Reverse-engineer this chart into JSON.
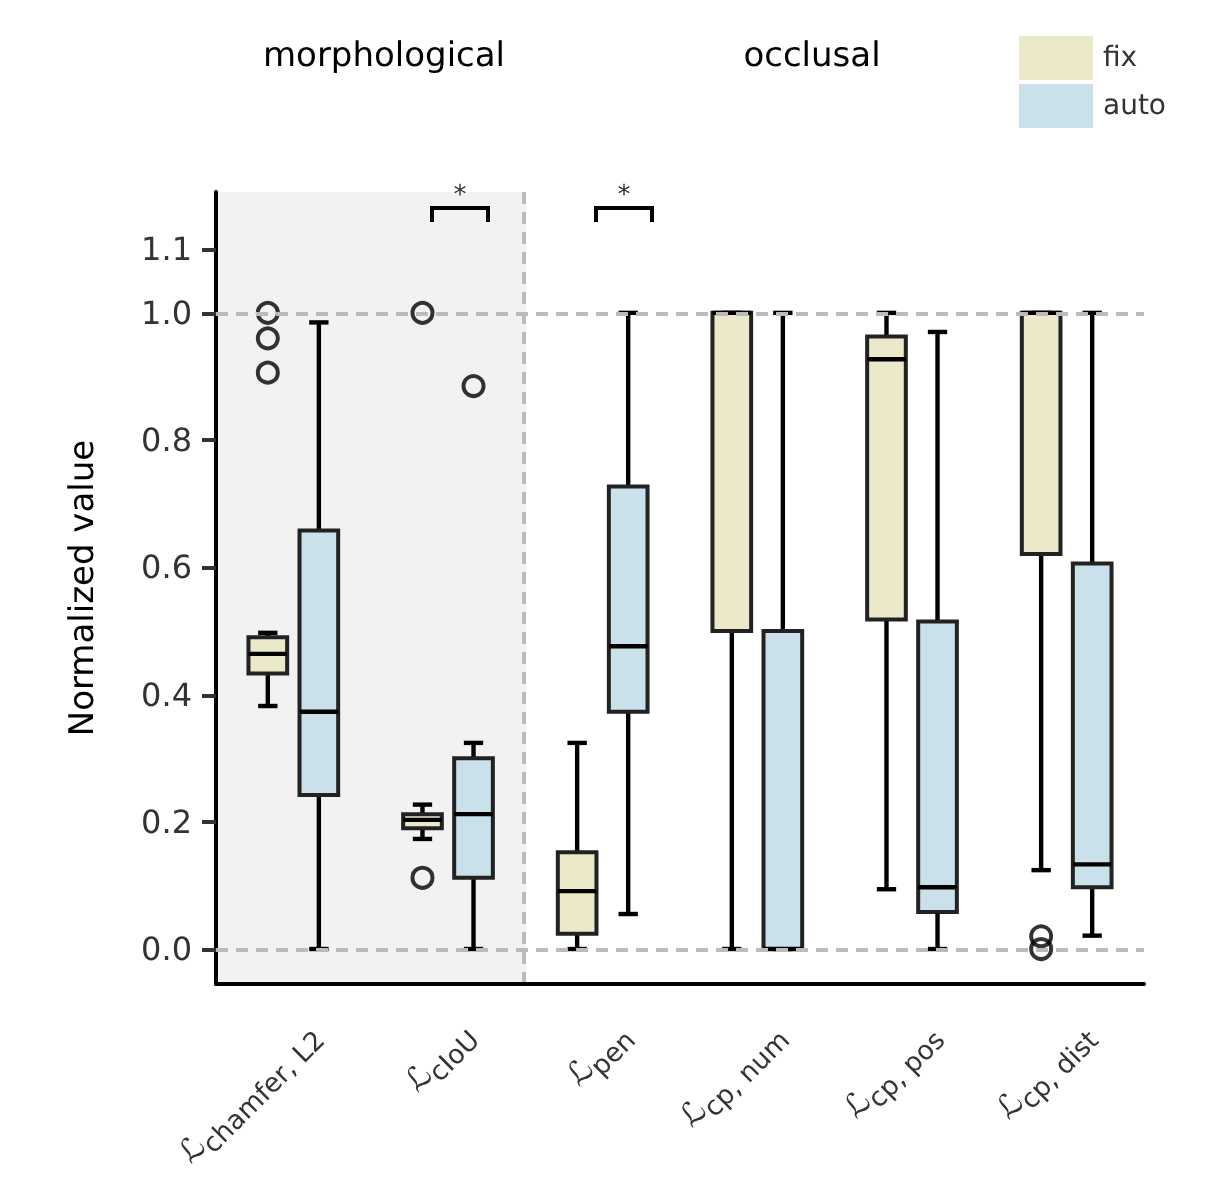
{
  "chart_data": {
    "type": "box",
    "ylabel": "Normalized value",
    "categories": [
      "ℒ$_{chamfer, L2}$",
      "ℒ$_{cIoU}$",
      "ℒ$_{pen}$",
      "ℒ$_{cp, num}$",
      "ℒ$_{cp, pos}$",
      "ℒ$_{cp, dist}$"
    ],
    "series": [
      {
        "name": "fix",
        "color": "#ece8ca",
        "boxes": [
          {
            "low": 0.382,
            "q1": 0.433,
            "median": 0.464,
            "q3": 0.49,
            "high": 0.497,
            "outliers": [
              1.0,
              0.96,
              0.906
            ]
          },
          {
            "low": 0.173,
            "q1": 0.19,
            "median": 0.203,
            "q3": 0.212,
            "high": 0.227,
            "outliers": [
              1.0,
              0.112
            ]
          },
          {
            "low": 0,
            "q1": 0.024,
            "median": 0.091,
            "q3": 0.152,
            "high": 0.324
          },
          {
            "low": 0,
            "q1": 0.5,
            "median": 1.0,
            "q3": 1.0,
            "high": 1.0
          },
          {
            "low": 0.094,
            "q1": 0.518,
            "median": 0.927,
            "q3": 0.963,
            "high": 1.0
          },
          {
            "low": 0.124,
            "q1": 0.621,
            "median": 1.0,
            "q3": 1.0,
            "high": 1.0,
            "outliers": [
              0.02,
              0.0
            ]
          }
        ]
      },
      {
        "name": "auto",
        "color": "#cae0ea",
        "boxes": [
          {
            "low": 0,
            "q1": 0.242,
            "median": 0.373,
            "q3": 0.658,
            "high": 0.985
          },
          {
            "low": 0,
            "q1": 0.112,
            "median": 0.212,
            "q3": 0.3,
            "high": 0.324,
            "outliers": [
              0.885
            ]
          },
          {
            "low": 0.055,
            "q1": 0.373,
            "median": 0.476,
            "q3": 0.727,
            "high": 1.0
          },
          {
            "low": 0,
            "q1": 0,
            "median": 0,
            "q3": 0.5,
            "high": 1.0
          },
          {
            "low": 0,
            "q1": 0.058,
            "median": 0.097,
            "q3": 0.515,
            "high": 0.97
          },
          {
            "low": 0.021,
            "q1": 0.097,
            "median": 0.133,
            "q3": 0.606,
            "high": 1.0
          }
        ]
      }
    ],
    "ylim": [
      -0.055,
      1.19
    ],
    "yticks": [
      {
        "value": 0,
        "label": "0.0"
      },
      {
        "value": 0.2,
        "label": "0.2"
      },
      {
        "value": 0.4,
        "label": "0.4"
      },
      {
        "value": 0.6,
        "label": "0.6"
      },
      {
        "value": 0.8,
        "label": "0.8"
      },
      {
        "value": 1,
        "label": "1.0"
      },
      {
        "value": 1.1,
        "label": "1.1"
      }
    ],
    "ref_lines": [
      {
        "axis": "y",
        "value": 0,
        "color": "#bbbbbb",
        "line_style": "dashed"
      },
      {
        "axis": "y",
        "value": 1,
        "color": "#bbbbbb",
        "line_style": "dashed"
      }
    ],
    "annotations": [
      "morphological",
      "occlusal",
      "*",
      "*"
    ],
    "legend": "top right"
  }
}
